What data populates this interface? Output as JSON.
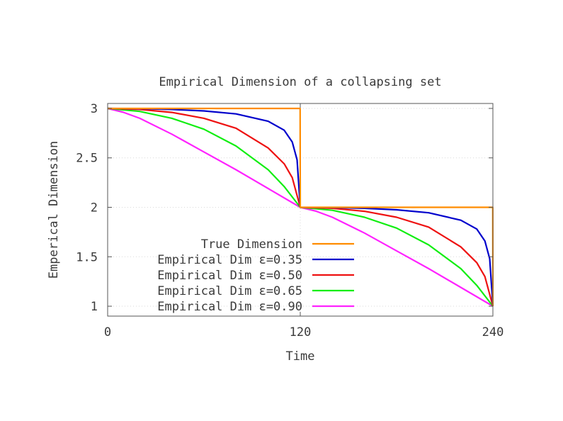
{
  "chart_data": {
    "type": "line",
    "title": "Empirical Dimension of a collapsing set",
    "xlabel": "Time",
    "ylabel": "Emperical Dimension",
    "xlim": [
      0,
      240
    ],
    "ylim": [
      0.9,
      3.05
    ],
    "xticks": [
      {
        "value": 0,
        "label": "0"
      },
      {
        "value": 120,
        "label": "120"
      },
      {
        "value": 240,
        "label": "240"
      }
    ],
    "yticks": [
      {
        "value": 1,
        "label": "1"
      },
      {
        "value": 1.5,
        "label": "1.5"
      },
      {
        "value": 2,
        "label": "2"
      },
      {
        "value": 2.5,
        "label": "2.5"
      },
      {
        "value": 3,
        "label": "3"
      }
    ],
    "grid": true,
    "legend_position": "bottom-left",
    "series": [
      {
        "name": "True Dimension",
        "color": "#ff8c00",
        "x": [
          0,
          119.9,
          120,
          239.9,
          240
        ],
        "y": [
          3,
          3,
          2,
          2,
          1
        ]
      },
      {
        "name": "Empirical Dim ε=0.35",
        "color": "#0000cc",
        "x": [
          0,
          20,
          40,
          60,
          80,
          100,
          110,
          115,
          118,
          120,
          140,
          160,
          180,
          200,
          220,
          230,
          235,
          238,
          240
        ],
        "y": [
          3,
          2.998,
          2.99,
          2.975,
          2.945,
          2.87,
          2.78,
          2.66,
          2.48,
          2.0,
          1.998,
          1.99,
          1.975,
          1.945,
          1.87,
          1.78,
          1.66,
          1.48,
          1.0
        ]
      },
      {
        "name": "Empirical Dim ε=0.50",
        "color": "#ee1111",
        "x": [
          0,
          20,
          40,
          60,
          80,
          100,
          110,
          115,
          120,
          140,
          160,
          180,
          200,
          220,
          230,
          235,
          240
        ],
        "y": [
          3,
          2.99,
          2.96,
          2.9,
          2.8,
          2.6,
          2.44,
          2.3,
          2.0,
          1.99,
          1.96,
          1.9,
          1.8,
          1.6,
          1.44,
          1.3,
          1.0
        ]
      },
      {
        "name": "Empirical Dim ε=0.65",
        "color": "#11ee11",
        "x": [
          0,
          20,
          40,
          60,
          80,
          100,
          110,
          120,
          140,
          160,
          180,
          200,
          220,
          230,
          240
        ],
        "y": [
          3,
          2.97,
          2.9,
          2.79,
          2.62,
          2.38,
          2.21,
          2.0,
          1.97,
          1.9,
          1.79,
          1.62,
          1.38,
          1.21,
          1.0
        ]
      },
      {
        "name": "Empirical Dim ε=0.90",
        "color": "#ff22ff",
        "x": [
          0,
          10,
          20,
          40,
          60,
          80,
          100,
          120,
          130,
          140,
          160,
          180,
          200,
          220,
          240
        ],
        "y": [
          3,
          2.96,
          2.9,
          2.74,
          2.56,
          2.38,
          2.19,
          2.0,
          1.96,
          1.9,
          1.74,
          1.56,
          1.38,
          1.19,
          1.0
        ]
      }
    ]
  }
}
